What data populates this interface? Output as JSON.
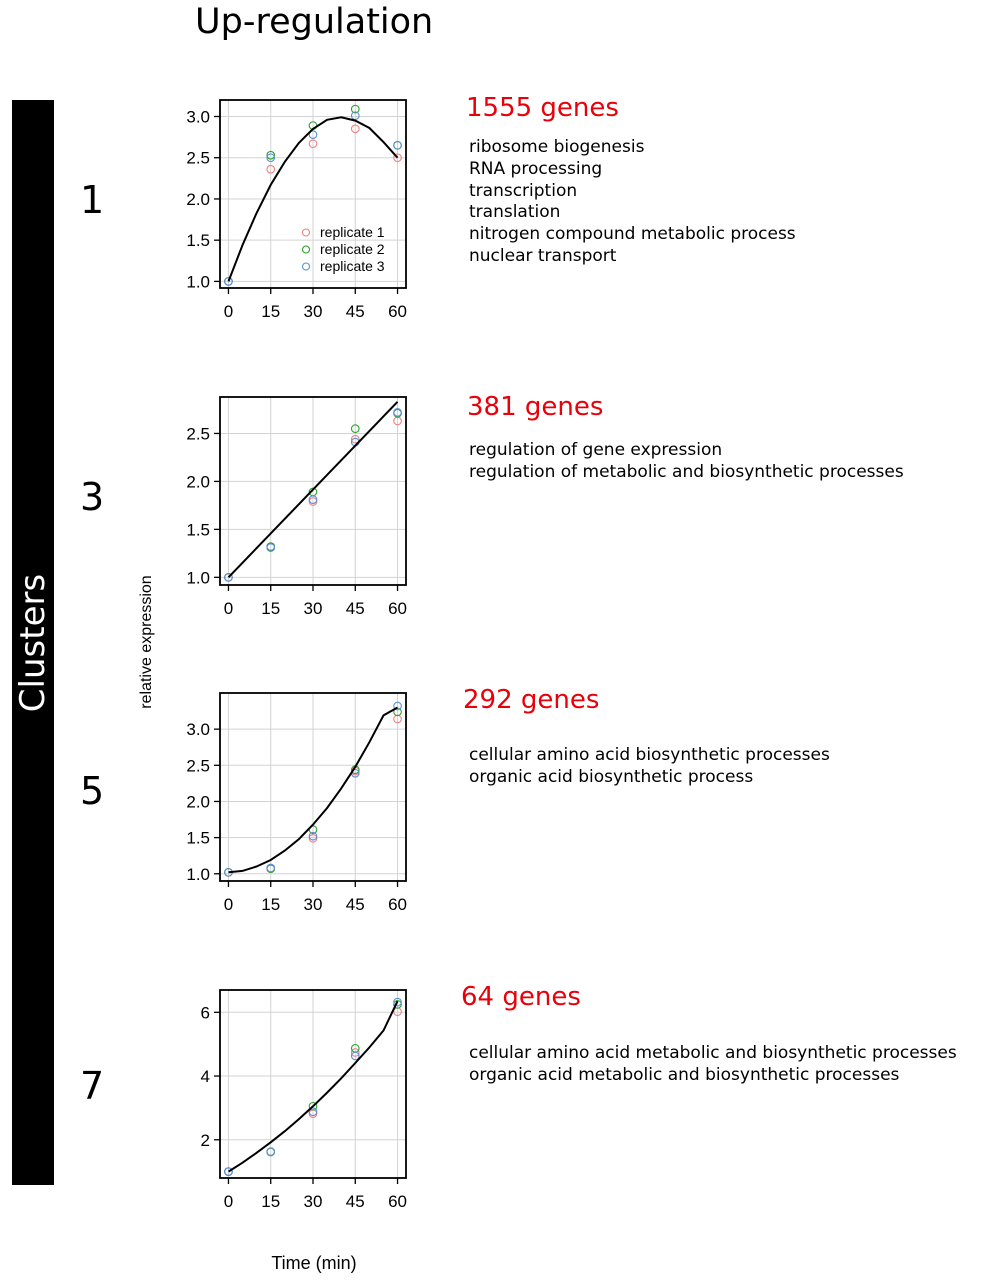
{
  "title": "Up-regulation",
  "side_label": "Clusters",
  "ylabel": "relative expression",
  "xlabel": "Time (min)",
  "colors": {
    "replicate1": "#f08080",
    "replicate2": "#2ca02c",
    "replicate3": "#5b8fd9",
    "gene_count": "#e8000b"
  },
  "legend": [
    "replicate 1",
    "replicate 2",
    "replicate 3"
  ],
  "chart_data": [
    {
      "type": "scatter",
      "cluster": "1",
      "gene_count": "1555 genes",
      "go_terms": [
        "ribosome biogenesis",
        "RNA processing",
        "transcription",
        "translation",
        "nitrogen compound metabolic process",
        "nuclear transport"
      ],
      "x": [
        0,
        15,
        30,
        45,
        60
      ],
      "xlim": [
        -3,
        63
      ],
      "ylim": [
        0.92,
        3.2
      ],
      "yticks": [
        1.0,
        1.5,
        2.0,
        2.5,
        3.0
      ],
      "ytick_labels": [
        "1.0",
        "1.5",
        "2.0",
        "2.5",
        "3.0"
      ],
      "xtick_labels": [
        "0",
        "15",
        "30",
        "45",
        "60"
      ],
      "series": [
        {
          "name": "replicate 1",
          "values": [
            1.0,
            2.36,
            2.67,
            2.85,
            2.5
          ]
        },
        {
          "name": "replicate 2",
          "values": [
            1.0,
            2.53,
            2.89,
            3.09,
            2.65
          ]
        },
        {
          "name": "replicate 3",
          "values": [
            1.0,
            2.5,
            2.78,
            3.01,
            2.65
          ]
        }
      ],
      "fit": {
        "x": [
          0,
          5,
          10,
          15,
          20,
          25,
          30,
          35,
          40,
          45,
          50,
          55,
          60
        ],
        "y": [
          1.0,
          1.44,
          1.83,
          2.17,
          2.45,
          2.68,
          2.85,
          2.96,
          2.99,
          2.95,
          2.86,
          2.69,
          2.5
        ]
      },
      "legend_position": "bottom-right"
    },
    {
      "type": "scatter",
      "cluster": "3",
      "gene_count": "381 genes",
      "go_terms": [
        "regulation of gene expression",
        "regulation of metabolic and biosynthetic processes"
      ],
      "x": [
        0,
        15,
        30,
        45,
        60
      ],
      "xlim": [
        -3,
        63
      ],
      "ylim": [
        0.92,
        2.88
      ],
      "yticks": [
        1.0,
        1.5,
        2.0,
        2.5
      ],
      "ytick_labels": [
        "1.0",
        "1.5",
        "2.0",
        "2.5"
      ],
      "xtick_labels": [
        "0",
        "15",
        "30",
        "45",
        "60"
      ],
      "series": [
        {
          "name": "replicate 1",
          "values": [
            1.0,
            1.32,
            1.79,
            2.44,
            2.63
          ]
        },
        {
          "name": "replicate 2",
          "values": [
            1.0,
            1.32,
            1.89,
            2.55,
            2.71
          ]
        },
        {
          "name": "replicate 3",
          "values": [
            1.0,
            1.31,
            1.81,
            2.41,
            2.72
          ]
        }
      ],
      "fit": {
        "x": [
          0,
          60
        ],
        "y": [
          1.0,
          2.83
        ]
      }
    },
    {
      "type": "scatter",
      "cluster": "5",
      "gene_count": "292 genes",
      "go_terms": [
        "cellular amino acid biosynthetic processes",
        "organic acid biosynthetic process"
      ],
      "x": [
        0,
        15,
        30,
        45,
        60
      ],
      "xlim": [
        -3,
        63
      ],
      "ylim": [
        0.9,
        3.5
      ],
      "yticks": [
        1.0,
        1.5,
        2.0,
        2.5,
        3.0
      ],
      "ytick_labels": [
        "1.0",
        "1.5",
        "2.0",
        "2.5",
        "3.0"
      ],
      "xtick_labels": [
        "0",
        "15",
        "30",
        "45",
        "60"
      ],
      "series": [
        {
          "name": "replicate 1",
          "values": [
            1.02,
            1.07,
            1.49,
            2.42,
            3.14
          ]
        },
        {
          "name": "replicate 2",
          "values": [
            1.02,
            1.07,
            1.61,
            2.44,
            3.24
          ]
        },
        {
          "name": "replicate 3",
          "values": [
            1.02,
            1.08,
            1.52,
            2.39,
            3.32
          ]
        }
      ],
      "fit": {
        "x": [
          0,
          5,
          10,
          15,
          20,
          25,
          30,
          35,
          40,
          45,
          50,
          55,
          60
        ],
        "y": [
          1.02,
          1.04,
          1.1,
          1.19,
          1.32,
          1.48,
          1.68,
          1.91,
          2.18,
          2.48,
          2.82,
          3.19,
          3.3
        ]
      }
    },
    {
      "type": "scatter",
      "cluster": "7",
      "gene_count": "64 genes",
      "go_terms": [
        "cellular amino acid metabolic and biosynthetic processes",
        "organic acid metabolic and biosynthetic processes"
      ],
      "x": [
        0,
        15,
        30,
        45,
        60
      ],
      "xlim": [
        -3,
        63
      ],
      "ylim": [
        0.8,
        6.7
      ],
      "yticks": [
        2,
        4,
        6
      ],
      "ytick_labels": [
        "2",
        "4",
        "6"
      ],
      "xtick_labels": [
        "0",
        "15",
        "30",
        "45",
        "60"
      ],
      "series": [
        {
          "name": "replicate 1",
          "values": [
            1.0,
            1.62,
            2.82,
            4.74,
            6.02
          ]
        },
        {
          "name": "replicate 2",
          "values": [
            1.0,
            1.62,
            3.05,
            4.87,
            6.25
          ]
        },
        {
          "name": "replicate 3",
          "values": [
            1.0,
            1.63,
            2.88,
            4.63,
            6.32
          ]
        }
      ],
      "fit": {
        "x": [
          0,
          5,
          10,
          15,
          20,
          25,
          30,
          35,
          40,
          45,
          50,
          55,
          60
        ],
        "y": [
          1.0,
          1.28,
          1.59,
          1.92,
          2.27,
          2.65,
          3.05,
          3.48,
          3.93,
          4.41,
          4.9,
          5.43,
          6.35
        ]
      }
    }
  ]
}
